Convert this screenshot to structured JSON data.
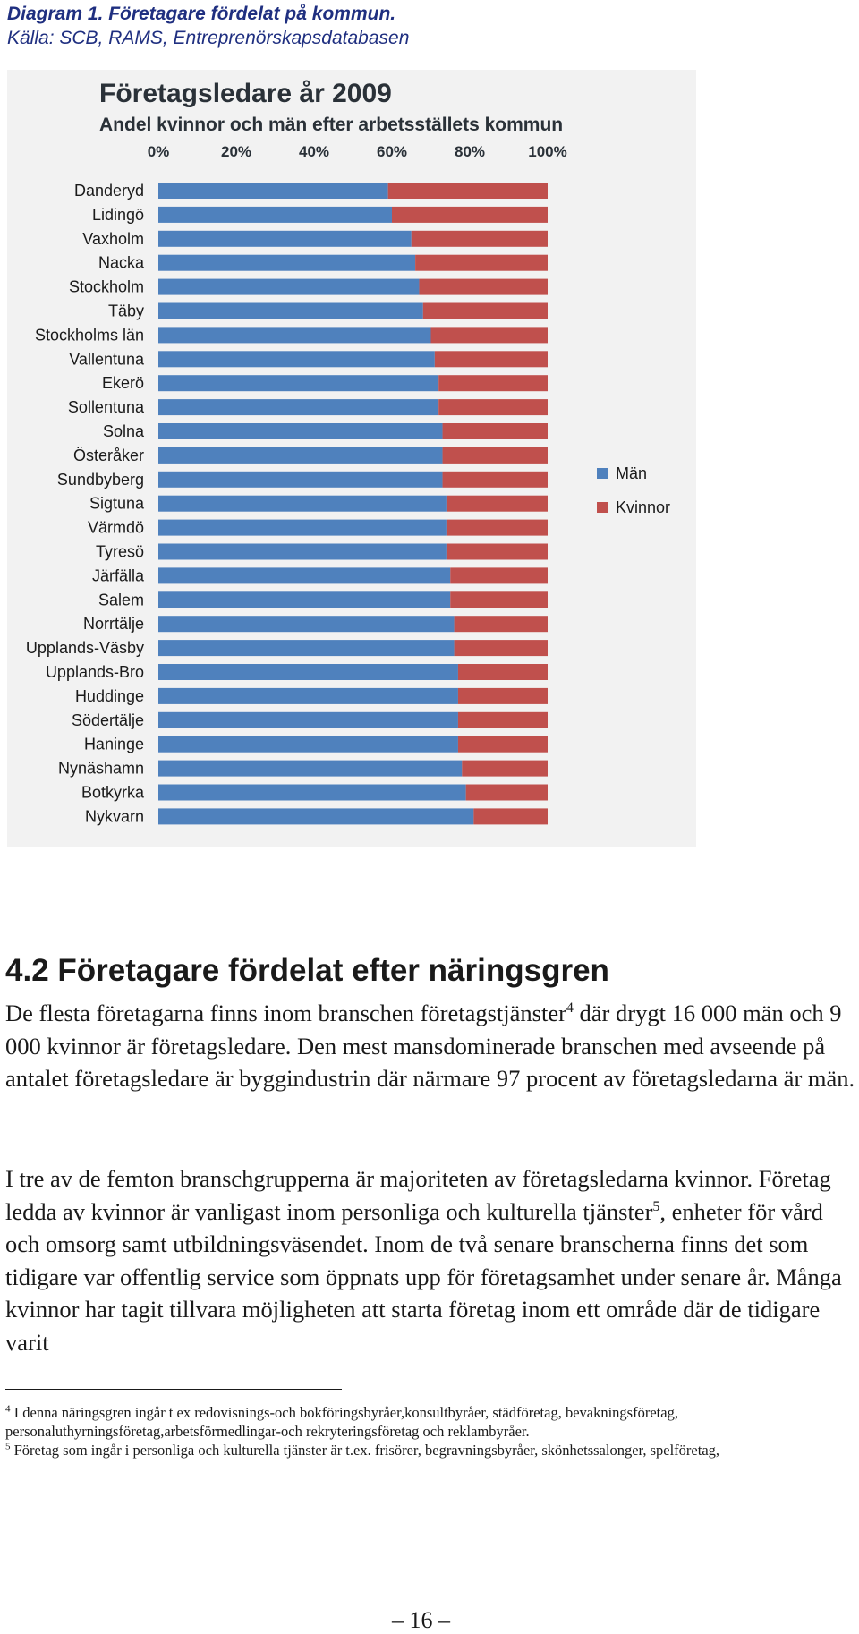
{
  "caption": {
    "title": "Diagram 1. Företagare fördelat på kommun.",
    "source": "Källa: SCB, RAMS, Entreprenörskapsdatabasen"
  },
  "chart_data": {
    "type": "bar",
    "orientation": "horizontal",
    "stacked": true,
    "percent_stacked": true,
    "title": "Företagsledare år 2009",
    "subtitle": "Andel kvinnor och män efter arbetsställets kommun",
    "x_ticks": [
      "0%",
      "20%",
      "40%",
      "60%",
      "80%",
      "100%"
    ],
    "xlim": [
      0,
      100
    ],
    "grid": false,
    "legend_position": "right",
    "categories": [
      "Danderyd",
      "Lidingö",
      "Vaxholm",
      "Nacka",
      "Stockholm",
      "Täby",
      "Stockholms län",
      "Vallentuna",
      "Ekerö",
      "Sollentuna",
      "Solna",
      "Österåker",
      "Sundbyberg",
      "Sigtuna",
      "Värmdö",
      "Tyresö",
      "Järfälla",
      "Salem",
      "Norrtälje",
      "Upplands-Väsby",
      "Upplands-Bro",
      "Huddinge",
      "Södertälje",
      "Haninge",
      "Nynäshamn",
      "Botkyrka",
      "Nykvarn"
    ],
    "series": [
      {
        "name": "Män",
        "color": "#4f81bd",
        "values": [
          59,
          60,
          65,
          66,
          67,
          68,
          70,
          71,
          72,
          72,
          73,
          73,
          73,
          74,
          74,
          74,
          75,
          75,
          76,
          76,
          77,
          77,
          77,
          77,
          78,
          79,
          81
        ]
      },
      {
        "name": "Kvinnor",
        "color": "#c0504d",
        "values": [
          41,
          40,
          35,
          34,
          33,
          32,
          30,
          29,
          28,
          28,
          27,
          27,
          27,
          26,
          26,
          26,
          25,
          25,
          24,
          24,
          23,
          23,
          23,
          23,
          22,
          21,
          19
        ]
      }
    ]
  },
  "section": {
    "title": "4.2 Företagare fördelat efter näringsgren"
  },
  "paragraphs": {
    "p1_a": "De flesta företagarna finns inom branschen företagstjänster",
    "p1_sup": "4",
    "p1_b": " där drygt 16 000 män och 9 000 kvinnor är företagsledare. Den mest mansdominerade branschen med avseende på antalet företagsledare är byggindustrin där närmare 97 procent av företagsledarna är män.",
    "p2_a": "I tre av de femton branschgrupperna är majoriteten av företagsledarna kvinnor. Företag ledda av kvinnor är vanligast inom personliga och kulturella tjänster",
    "p2_sup": "5",
    "p2_b": ", enheter för vård och omsorg samt utbildningsväsendet. Inom de två senare branscherna finns det som tidigare var offentlig service som öppnats upp för företagsamhet under senare år. Många kvinnor har tagit tillvara möjligheten att starta företag inom ett område där de tidigare varit"
  },
  "footnotes": {
    "fn4_mark": "4",
    "fn4_text": " I denna näringsgren ingår t ex redovisnings-och bokföringsbyråer,konsultbyråer, städföretag, bevakningsföretag, personaluthyrningsföretag,arbetsförmedlingar-och rekryteringsföretag och reklambyråer.",
    "fn5_mark": "5",
    "fn5_text": " Företag som ingår i personliga och kulturella tjänster är t.ex. frisörer, begravningsbyråer, skönhetssalonger, spelföretag,"
  },
  "page_number": "– 16 –"
}
